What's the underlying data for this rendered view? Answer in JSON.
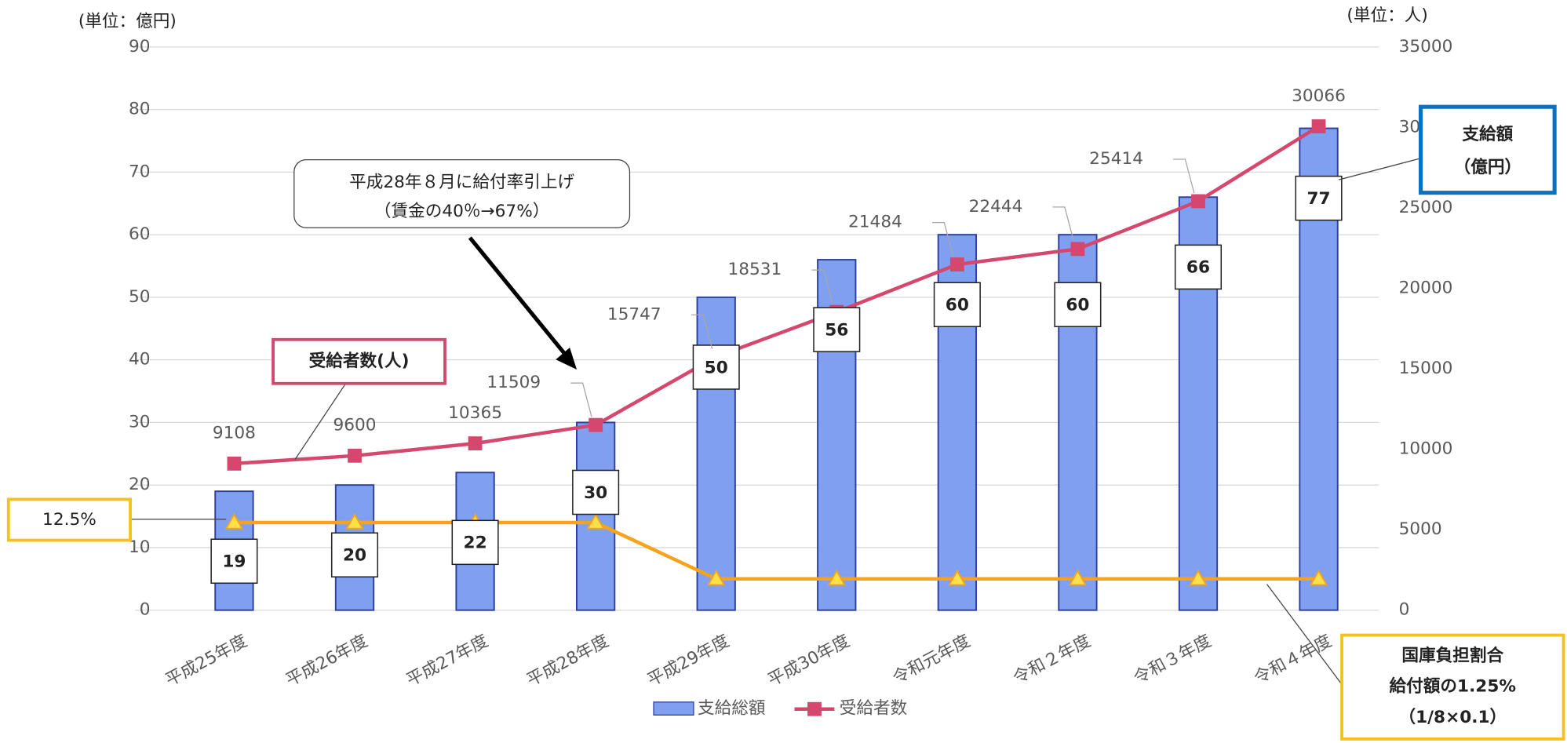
{
  "chart_data": {
    "type": "bar",
    "categories": [
      "平成25年度",
      "平成26年度",
      "平成27年度",
      "平成28年度",
      "平成29年度",
      "平成30年度",
      "令和元年度",
      "令和２年度",
      "令和３年度",
      "令和４年度"
    ],
    "series": [
      {
        "name": "支給総額",
        "type": "bar",
        "color": "#7f9ff0",
        "values": [
          19,
          20,
          22,
          30,
          50,
          56,
          60,
          60,
          66,
          77
        ]
      },
      {
        "name": "受給者数",
        "type": "line",
        "axis": "y2",
        "color": "#d6476e",
        "values": [
          9108,
          9600,
          10365,
          11509,
          15747,
          18531,
          21484,
          22444,
          25414,
          30066
        ]
      },
      {
        "type": "line",
        "color": "#f5a21c",
        "values": [
          14,
          14,
          14,
          14,
          5,
          5,
          5,
          5,
          5,
          5
        ]
      }
    ],
    "ylim": [
      0,
      90
    ],
    "yticks": [
      0,
      10,
      20,
      30,
      40,
      50,
      60,
      70,
      80,
      90
    ],
    "y2lim": [
      0,
      35000
    ],
    "y2ticks": [
      0,
      5000,
      10000,
      15000,
      20000,
      25000,
      30000,
      35000
    ],
    "grid": true,
    "legend": "bottom",
    "ylabel": "(単位：億円)",
    "y2label": "(単位：人)",
    "annotations": {
      "raise": [
        "平成28年８月に給付率引上げ",
        "（賃金の40％→67%）"
      ],
      "recipients": "受給者数(人)",
      "share": "12.5%",
      "amount": [
        "支給額",
        "（億円）"
      ],
      "national": [
        "国庫負担割合",
        "給付額の1.25%",
        "（1/8×0.1）"
      ]
    }
  }
}
